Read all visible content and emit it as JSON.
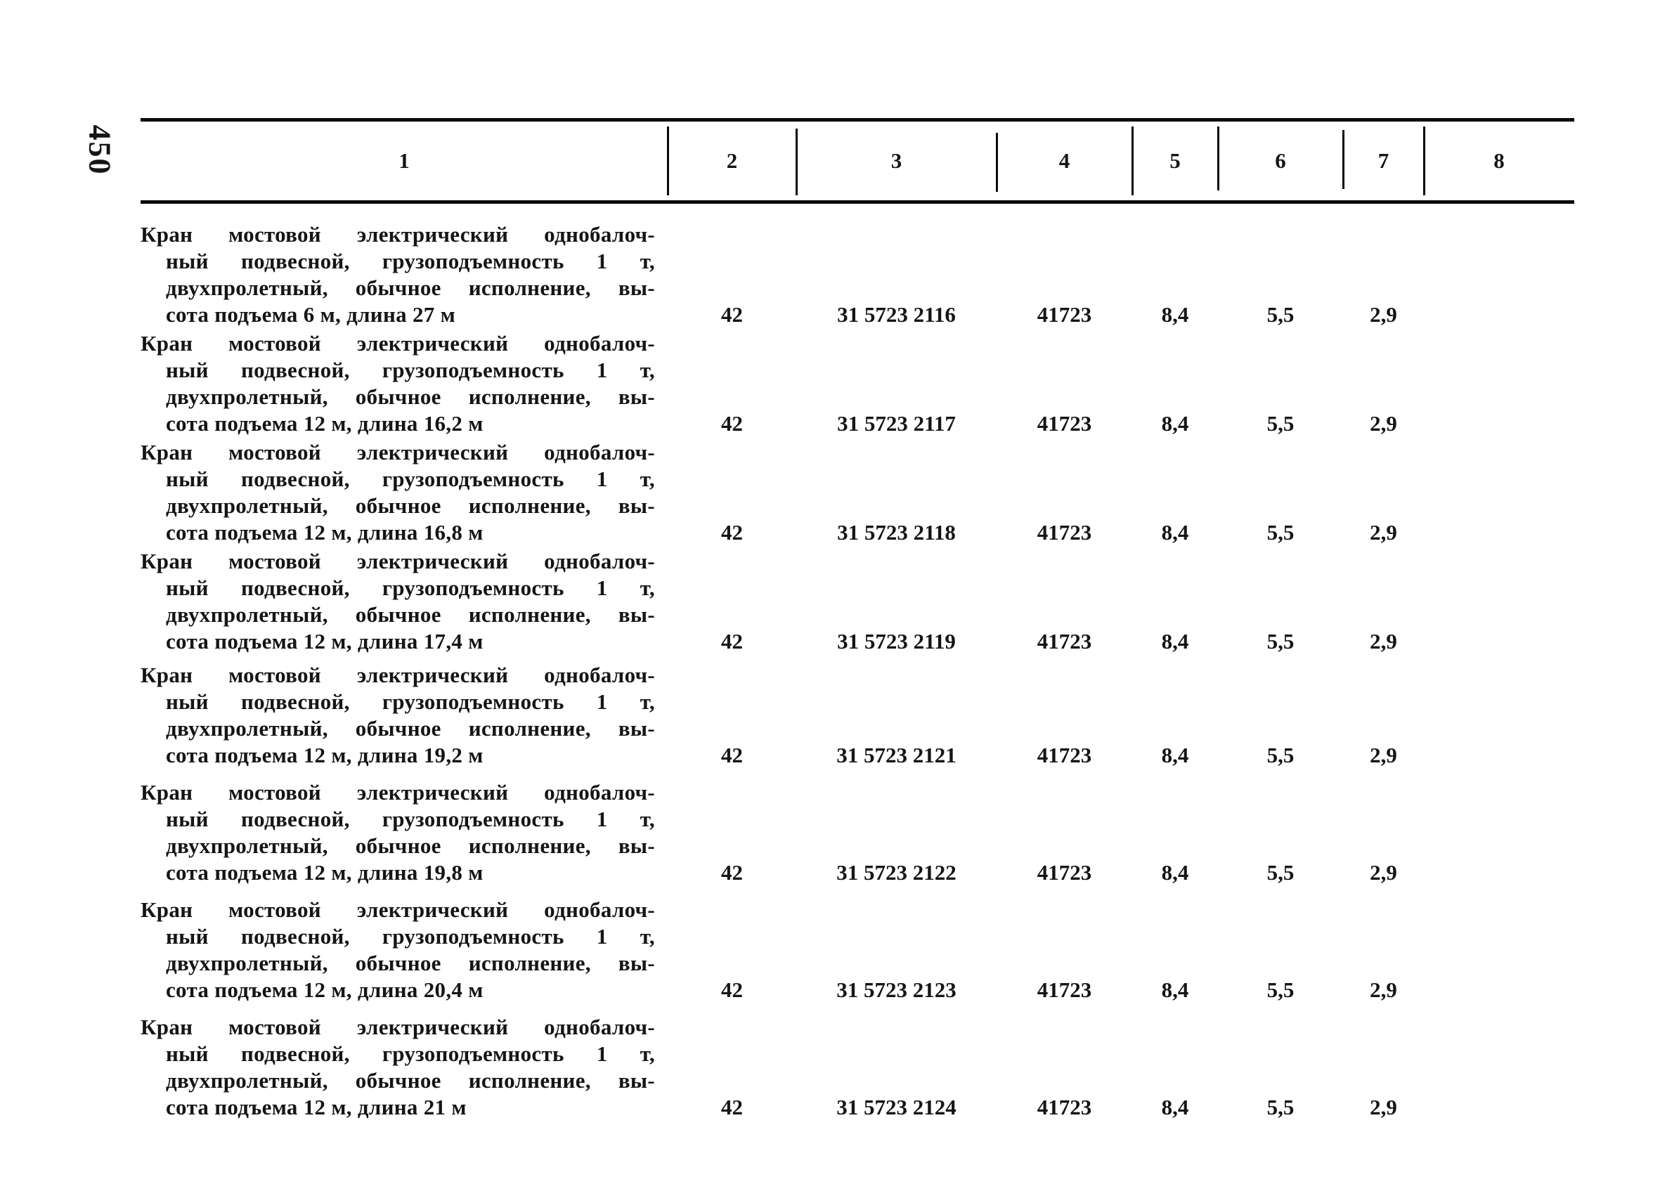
{
  "page": {
    "number": "450"
  },
  "colors": {
    "ink": "#151515",
    "paper": "#ffffff"
  },
  "table": {
    "header": {
      "columns": [
        "1",
        "2",
        "3",
        "4",
        "5",
        "6",
        "7",
        "8"
      ]
    },
    "rows": [
      {
        "desc_lines": [
          "Кран мостовой электрический однобалоч-",
          "ный подвесной, грузоподъемность 1 т,",
          "двухпролетный, обычное исполнение, вы-",
          "сота подъема 6 м, длина 27 м"
        ],
        "col2": "42",
        "col3": "31 5723 2116",
        "col4": "41723",
        "col5": "8,4",
        "col6": "5,5",
        "col7": "2,9",
        "col8": ""
      },
      {
        "desc_lines": [
          "Кран мостовой электрический однобалоч-",
          "ный подвесной, грузоподъемность 1 т,",
          "двухпролетный, обычное исполнение, вы-",
          "сота подъема 12 м, длина 16,2 м"
        ],
        "col2": "42",
        "col3": "31 5723 2117",
        "col4": "41723",
        "col5": "8,4",
        "col6": "5,5",
        "col7": "2,9",
        "col8": ""
      },
      {
        "desc_lines": [
          "Кран мостовой электрический однобалоч-",
          "ный подвесной, грузоподъемность 1 т,",
          "двухпролетный, обычное исполнение, вы-",
          "сота подъема 12 м, длина 16,8 м"
        ],
        "col2": "42",
        "col3": "31 5723 2118",
        "col4": "41723",
        "col5": "8,4",
        "col6": "5,5",
        "col7": "2,9",
        "col8": ""
      },
      {
        "desc_lines": [
          "Кран мостовой электрический однобалоч-",
          "ный подвесной, грузоподъемность 1 т,",
          "двухпролетный, обычное исполнение, вы-",
          "сота подъема 12 м, длина 17,4 м"
        ],
        "col2": "42",
        "col3": "31 5723 2119",
        "col4": "41723",
        "col5": "8,4",
        "col6": "5,5",
        "col7": "2,9",
        "col8": ""
      },
      {
        "desc_lines": [
          "Кран мостовой электрический однобалоч-",
          "ный подвесной, грузоподъемность 1 т,",
          "двухпролетный, обычное исполнение, вы-",
          "сота подъема 12 м, длина 19,2 м"
        ],
        "col2": "42",
        "col3": "31 5723 2121",
        "col4": "41723",
        "col5": "8,4",
        "col6": "5,5",
        "col7": "2,9",
        "col8": ""
      },
      {
        "desc_lines": [
          "Кран мостовой электрический однобалоч-",
          "ный подвесной, грузоподъемность 1 т,",
          "двухпролетный, обычное исполнение, вы-",
          "сота подъема 12 м, длина 19,8 м"
        ],
        "col2": "42",
        "col3": "31 5723 2122",
        "col4": "41723",
        "col5": "8,4",
        "col6": "5,5",
        "col7": "2,9",
        "col8": ""
      },
      {
        "desc_lines": [
          "Кран мостовой электрический однобалоч-",
          "ный подвесной, грузоподъемность 1 т,",
          "двухпролетный, обычное исполнение, вы-",
          "сота подъема 12 м, длина 20,4 м"
        ],
        "col2": "42",
        "col3": "31 5723 2123",
        "col4": "41723",
        "col5": "8,4",
        "col6": "5,5",
        "col7": "2,9",
        "col8": ""
      },
      {
        "desc_lines": [
          "Кран мостовой электрический однобалоч-",
          "ный подвесной, грузоподъемность 1 т,",
          "двухпролетный, обычное исполнение, вы-",
          "сота подъема 12 м, длина 21 м"
        ],
        "col2": "42",
        "col3": "31 5723 2124",
        "col4": "41723",
        "col5": "8,4",
        "col6": "5,5",
        "col7": "2,9",
        "col8": ""
      }
    ]
  }
}
